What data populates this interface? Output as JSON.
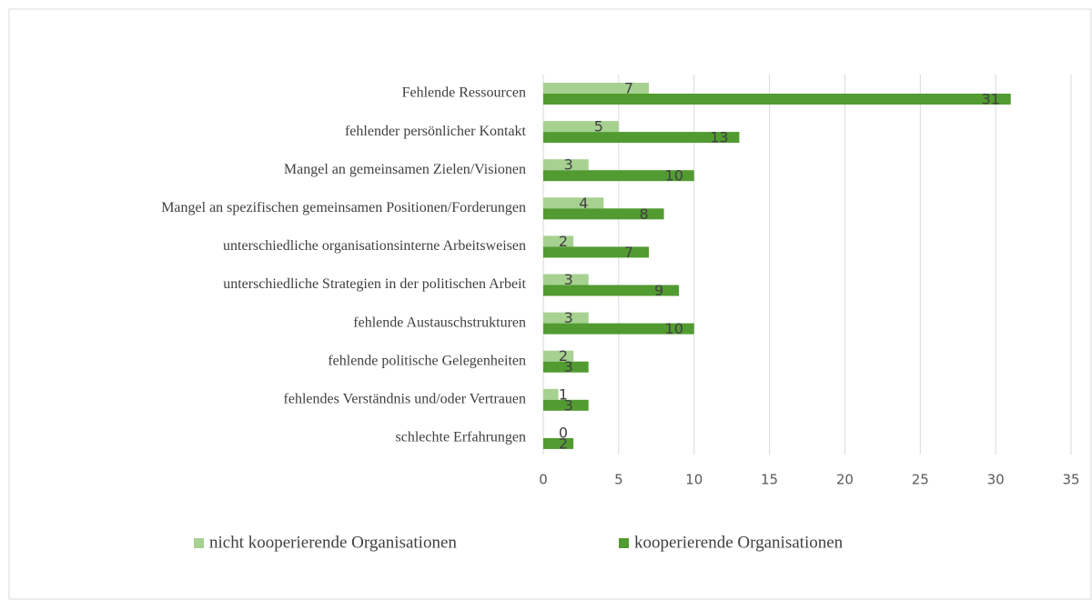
{
  "chart_data": {
    "type": "bar",
    "orientation": "horizontal",
    "categories": [
      "Fehlende Ressourcen",
      "fehlender persönlicher Kontakt",
      "Mangel an gemeinsamen Zielen/Visionen",
      "Mangel an spezifischen gemeinsamen Positionen/Forderungen",
      "unterschiedliche organisationsinterne Arbeitsweisen",
      "unterschiedliche Strategien in der politischen Arbeit",
      "fehlende Austauschstrukturen",
      "fehlende politische Gelegenheiten",
      "fehlendes Verständnis und/oder Vertrauen",
      "schlechte Erfahrungen"
    ],
    "series": [
      {
        "name": "nicht kooperierende Organisationen",
        "color": "#a6d190",
        "values": [
          7,
          5,
          3,
          4,
          2,
          3,
          3,
          2,
          1,
          0
        ]
      },
      {
        "name": "kooperierende Organisationen",
        "color": "#519b30",
        "values": [
          31,
          13,
          10,
          8,
          7,
          9,
          10,
          3,
          3,
          2
        ]
      }
    ],
    "xlim": [
      0,
      35
    ],
    "xticks": [
      0,
      5,
      10,
      15,
      20,
      25,
      30,
      35
    ],
    "grid": true,
    "legend": "bottom"
  }
}
